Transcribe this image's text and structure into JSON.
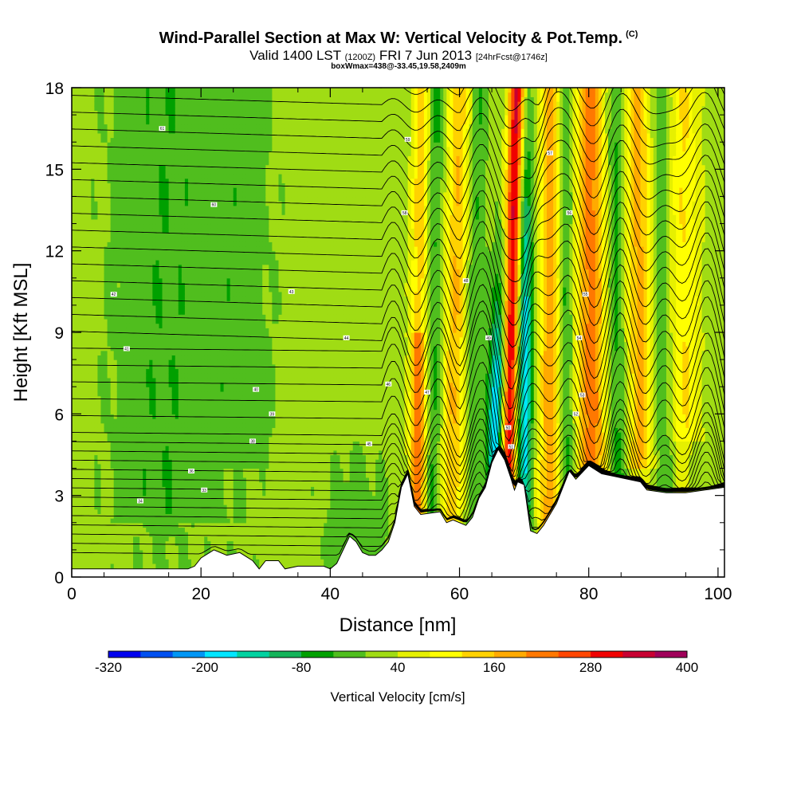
{
  "header": {
    "title": "Wind-Parallel Section at Max W: Vertical Velocity & Pot.Temp.",
    "copyright": "(C)",
    "valid_main": "Valid 1400 LST",
    "valid_utc": "(1200Z)",
    "valid_date": "FRI 7 Jun 2013",
    "forecast": "[24hrFcst@1746z]",
    "boxinfo": "boxWmax=438@-33.45,19.58,2409m"
  },
  "chart_data": {
    "type": "heatmap",
    "xlabel": "Distance [nm]",
    "ylabel": "Height [Kft MSL]",
    "xlim": [
      0,
      101
    ],
    "ylim": [
      0,
      18
    ],
    "x_ticks": [
      0,
      20,
      40,
      60,
      80,
      100
    ],
    "y_ticks": [
      0,
      3,
      6,
      9,
      12,
      15,
      18
    ],
    "colorbar": {
      "title": "Vertical Velocity [cm/s]",
      "tick_labels": [
        "-320",
        "-200",
        "-80",
        "40",
        "160",
        "280",
        "400"
      ],
      "tick_values": [
        -320,
        -200,
        -80,
        40,
        160,
        280,
        400
      ],
      "levels": [
        -320,
        -280,
        -240,
        -200,
        -160,
        -120,
        -80,
        -40,
        0,
        40,
        80,
        120,
        160,
        200,
        240,
        280,
        320,
        360,
        400
      ],
      "colors": [
        "#0000ee",
        "#0050f0",
        "#0096f5",
        "#00e6ff",
        "#00d2a0",
        "#14b45a",
        "#00a000",
        "#50be1e",
        "#a0dc14",
        "#e6f000",
        "#ffff00",
        "#ffd200",
        "#ffaa00",
        "#ff7800",
        "#ff4600",
        "#f00000",
        "#c80032",
        "#a0005a"
      ]
    },
    "terrain_profile_kft": [
      [
        0,
        0.3
      ],
      [
        10,
        0.3
      ],
      [
        18,
        0.3
      ],
      [
        19,
        0.4
      ],
      [
        20,
        0.7
      ],
      [
        22,
        1.0
      ],
      [
        24,
        0.8
      ],
      [
        26,
        0.9
      ],
      [
        28,
        0.6
      ],
      [
        29,
        0.3
      ],
      [
        30,
        0.6
      ],
      [
        32,
        0.6
      ],
      [
        33,
        0.3
      ],
      [
        35,
        0.4
      ],
      [
        37,
        0.4
      ],
      [
        39,
        0.4
      ],
      [
        40,
        0.3
      ],
      [
        41,
        0.5
      ],
      [
        42,
        1.0
      ],
      [
        43,
        1.5
      ],
      [
        44,
        1.3
      ],
      [
        45,
        0.9
      ],
      [
        46,
        0.8
      ],
      [
        47,
        0.8
      ],
      [
        48,
        1.0
      ],
      [
        49,
        1.3
      ],
      [
        50,
        2.0
      ],
      [
        51,
        3.3
      ],
      [
        52,
        3.8
      ],
      [
        53,
        2.6
      ],
      [
        54,
        2.3
      ],
      [
        57,
        2.4
      ],
      [
        58,
        2.0
      ],
      [
        59,
        2.1
      ],
      [
        61,
        1.9
      ],
      [
        62,
        2.2
      ],
      [
        63,
        2.9
      ],
      [
        64,
        3.3
      ],
      [
        65,
        4.2
      ],
      [
        66,
        4.7
      ],
      [
        67,
        4.3
      ],
      [
        68,
        3.6
      ],
      [
        68.5,
        3.2
      ],
      [
        69,
        3.5
      ],
      [
        70,
        3.4
      ],
      [
        71,
        1.7
      ],
      [
        72,
        1.6
      ],
      [
        73,
        1.9
      ],
      [
        74,
        2.3
      ],
      [
        75,
        2.7
      ],
      [
        76,
        3.3
      ],
      [
        77,
        3.9
      ],
      [
        78,
        3.6
      ],
      [
        80,
        4.1
      ],
      [
        82,
        3.8
      ],
      [
        84,
        3.7
      ],
      [
        88,
        3.5
      ],
      [
        89,
        3.2
      ],
      [
        92,
        3.1
      ],
      [
        95,
        3.1
      ],
      [
        98,
        3.2
      ],
      [
        101,
        3.3
      ]
    ],
    "potential_temperature_labels": [
      {
        "text": "34",
        "x": 10.6,
        "y": 2.8
      },
      {
        "text": "33",
        "x": 20.5,
        "y": 3.2
      },
      {
        "text": "36",
        "x": 18.5,
        "y": 3.9
      },
      {
        "text": "38",
        "x": 28.0,
        "y": 5.0
      },
      {
        "text": "39",
        "x": 31.0,
        "y": 6.0
      },
      {
        "text": "40",
        "x": 28.5,
        "y": 6.9
      },
      {
        "text": "41",
        "x": 8.5,
        "y": 8.4
      },
      {
        "text": "42",
        "x": 6.5,
        "y": 10.4
      },
      {
        "text": "43",
        "x": 34.0,
        "y": 10.5
      },
      {
        "text": "44",
        "x": 42.5,
        "y": 8.8
      },
      {
        "text": "45",
        "x": 46.0,
        "y": 4.9
      },
      {
        "text": "46",
        "x": 49.0,
        "y": 7.1
      },
      {
        "text": "47",
        "x": 55.0,
        "y": 6.8
      },
      {
        "text": "48",
        "x": 61.0,
        "y": 10.9
      },
      {
        "text": "49",
        "x": 64.5,
        "y": 8.8
      },
      {
        "text": "50",
        "x": 67.5,
        "y": 5.5
      },
      {
        "text": "51",
        "x": 68.0,
        "y": 4.8
      },
      {
        "text": "52",
        "x": 78.0,
        "y": 6.0
      },
      {
        "text": "53",
        "x": 79.0,
        "y": 6.7
      },
      {
        "text": "54",
        "x": 78.5,
        "y": 8.8
      },
      {
        "text": "55",
        "x": 79.5,
        "y": 10.4
      },
      {
        "text": "56",
        "x": 77.0,
        "y": 13.4
      },
      {
        "text": "57",
        "x": 74.0,
        "y": 15.6
      },
      {
        "text": "58",
        "x": 51.5,
        "y": 13.4
      },
      {
        "text": "59",
        "x": 52.0,
        "y": 16.1
      },
      {
        "text": "60",
        "x": 22.0,
        "y": 13.7
      },
      {
        "text": "61",
        "x": 14.0,
        "y": 16.5
      }
    ]
  }
}
